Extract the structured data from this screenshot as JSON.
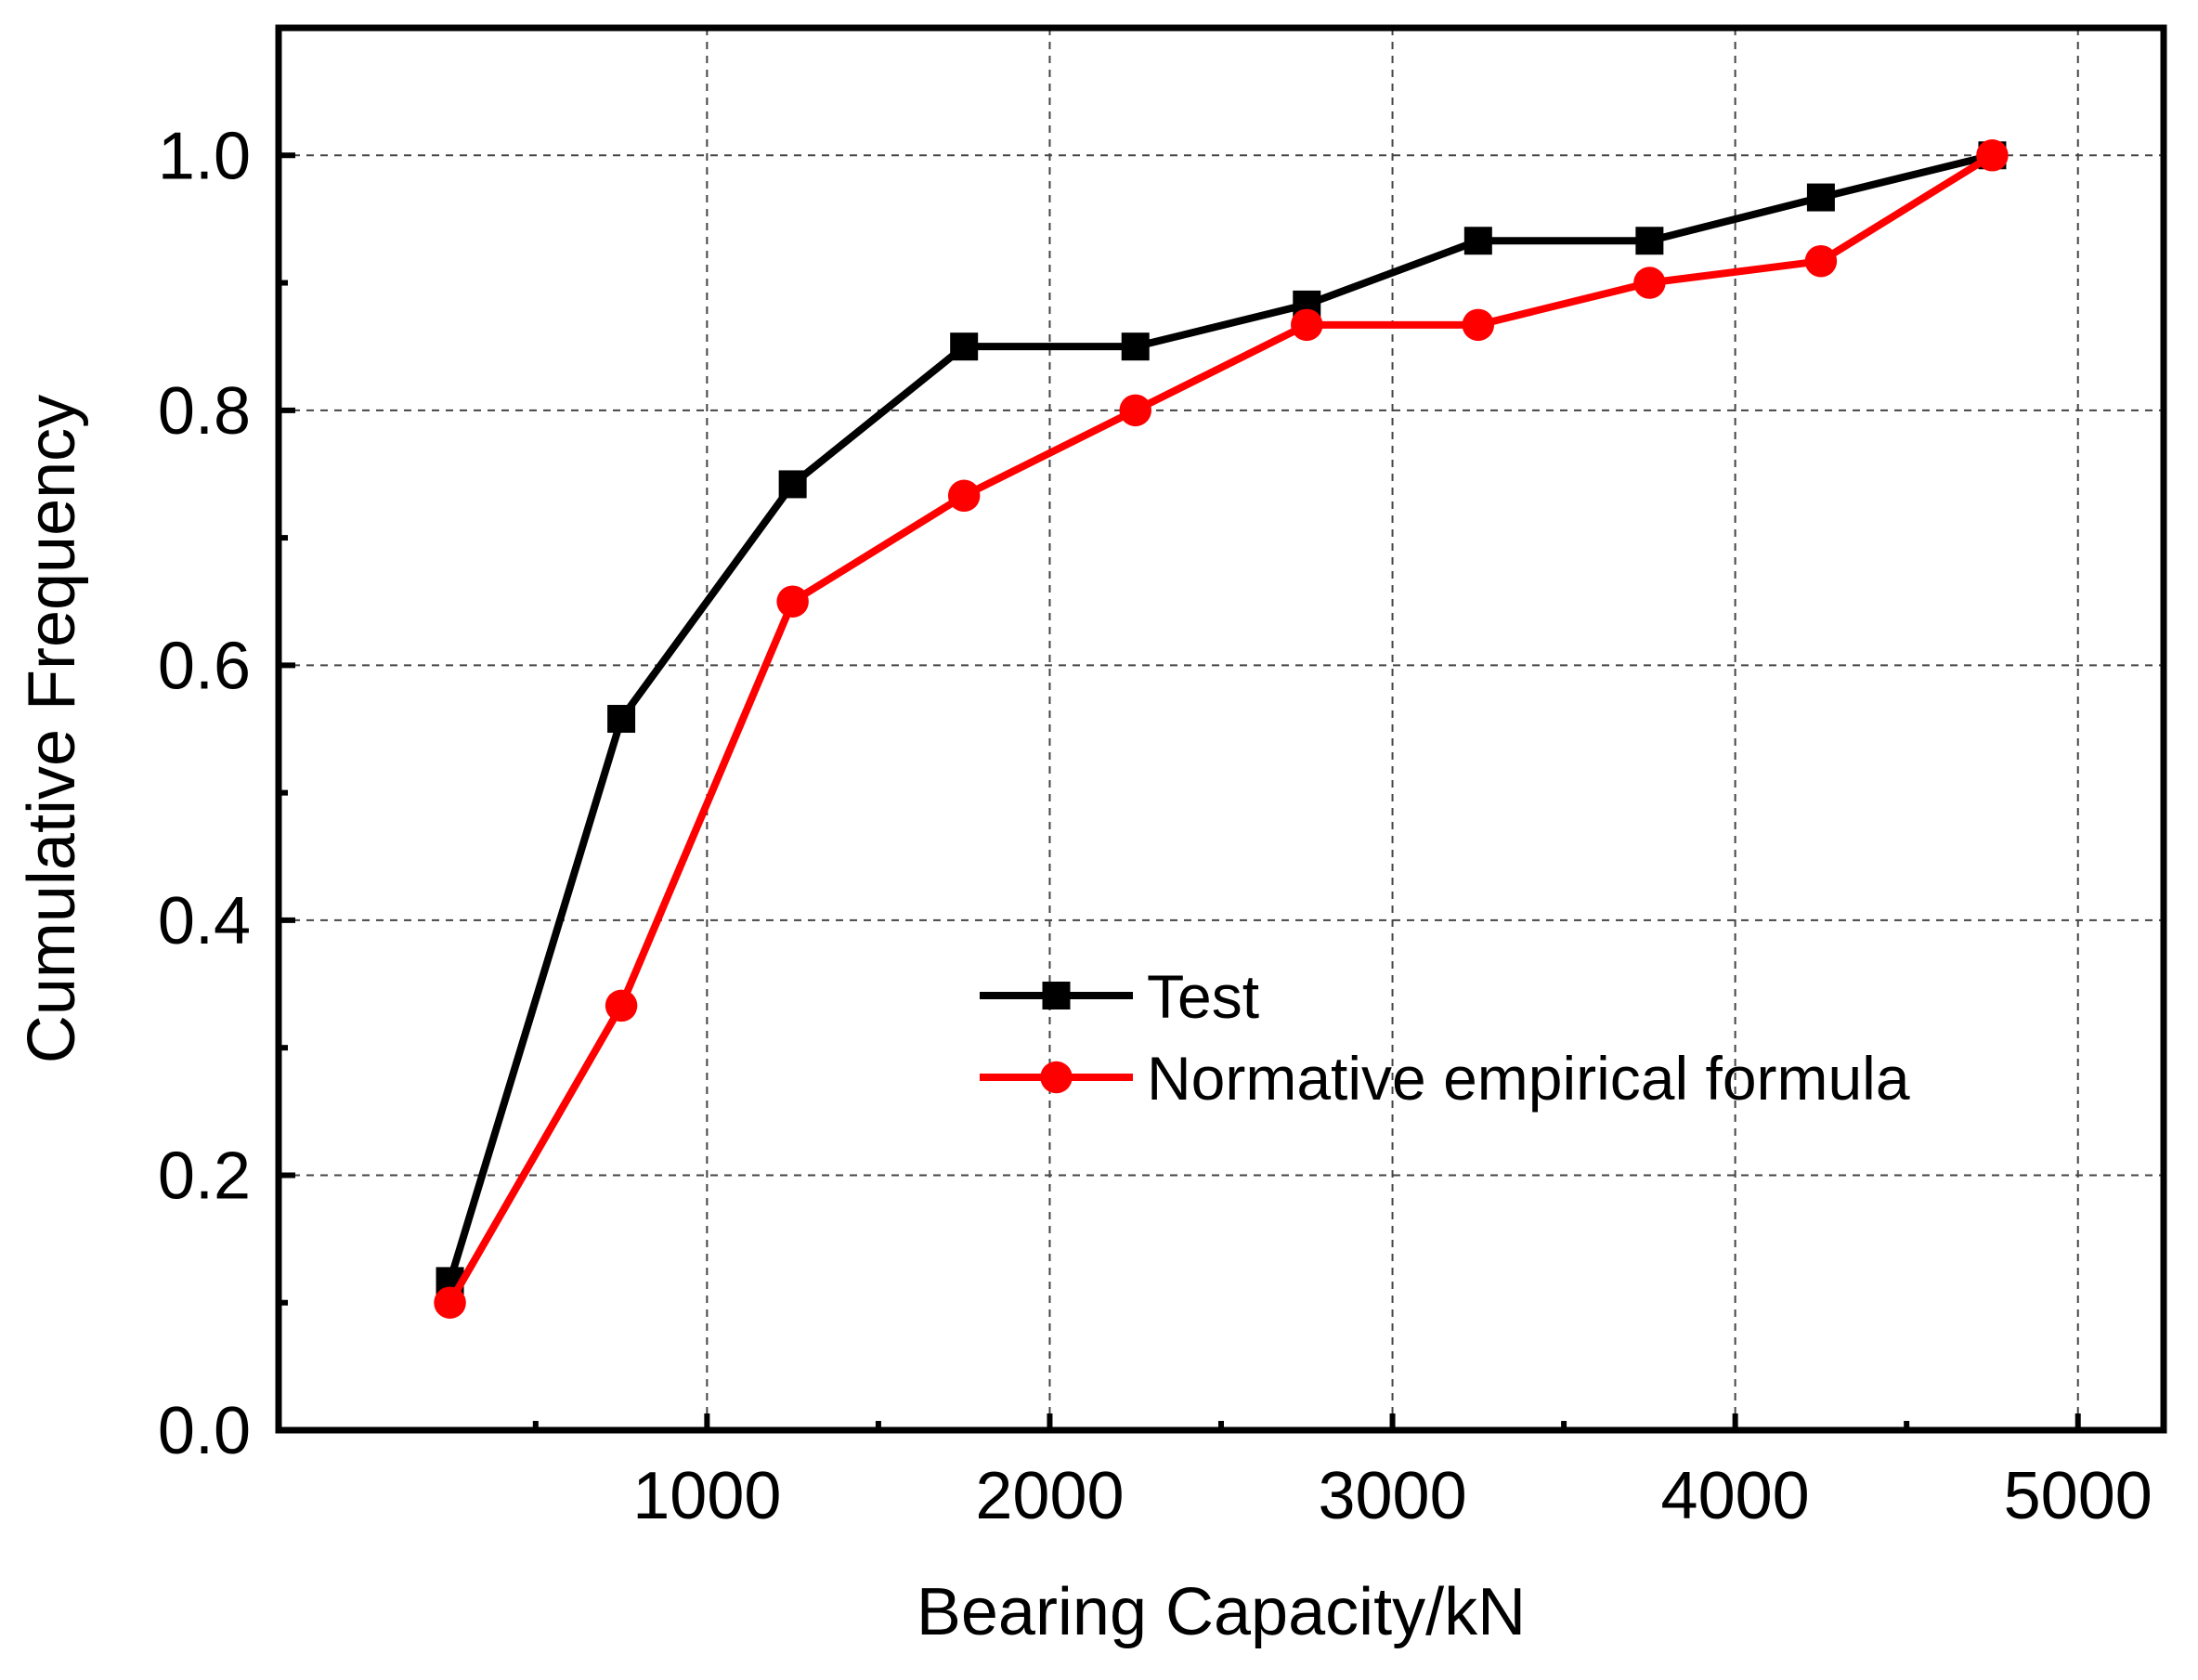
{
  "chart_data": {
    "type": "line",
    "title": "",
    "xlabel": "Bearing Capacity/kN",
    "ylabel": "Cumulative Frequency",
    "xlim": [
      -250,
      5250
    ],
    "ylim": [
      0.0,
      1.1
    ],
    "xticks": [
      1000,
      2000,
      3000,
      4000,
      5000
    ],
    "xtick_labels": [
      "1000",
      "2000",
      "3000",
      "4000",
      "5000"
    ],
    "xminor": [
      500,
      1500,
      2500,
      3500,
      4500
    ],
    "yticks": [
      0.0,
      0.2,
      0.4,
      0.6,
      0.8,
      1.0
    ],
    "ytick_labels": [
      "0.0",
      "0.2",
      "0.4",
      "0.6",
      "0.8",
      "1.0"
    ],
    "yminor": [
      0.1,
      0.3,
      0.5,
      0.7,
      0.9
    ],
    "grid": true,
    "legend_position": "center-right",
    "x": [
      250,
      750,
      1250,
      1750,
      2250,
      2750,
      3250,
      3750,
      4250,
      4750
    ],
    "series": [
      {
        "name": "Test",
        "color": "#000000",
        "marker": "square",
        "values": [
          0.117,
          0.558,
          0.742,
          0.85,
          0.85,
          0.883,
          0.933,
          0.933,
          0.967,
          1.0
        ]
      },
      {
        "name": "Normative empirical formula",
        "color": "#ff0000",
        "marker": "circle",
        "values": [
          0.1,
          0.333,
          0.65,
          0.733,
          0.8,
          0.867,
          0.867,
          0.9,
          0.917,
          1.0
        ]
      }
    ]
  }
}
